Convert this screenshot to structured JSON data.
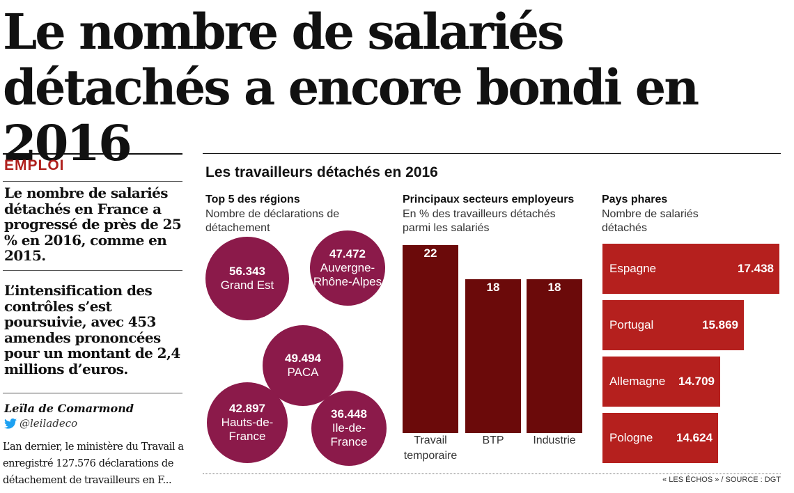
{
  "headline": "Le nombre de salariés détachés a encore bondi en  2016",
  "article": {
    "section": "EMPLOI",
    "lead1": "Le nombre de salariés détachés en France a progressé de près de 25 % en 2016, comme en 2015.",
    "lead2": "L’intensification des contrôles s’est poursuivie, avec 453 amendes prononcées pour un montant de 2,4 millions d’euros.",
    "author": "Leïla de Comarmond",
    "twitter": "@leiladeco",
    "body": "L’an dernier, le ministère du Travail a enregistré 127.576 déclarations de détachement de travailleurs en F..."
  },
  "infographic": {
    "title": "Les travailleurs détachés en 2016",
    "source": "« LES ÉCHOS » / SOURCE : DGT"
  },
  "colors": {
    "bubble": "#8b1a4a",
    "sector_bar": "#6b0a0a",
    "country_bar": "#b5201e",
    "section": "#b0211e"
  },
  "chart_data": [
    {
      "type": "bubble",
      "title": "Top 5 des régions",
      "subtitle": "Nombre de déclarations de détachement",
      "items": [
        {
          "label": "Grand Est",
          "value": 56343,
          "value_text": "56.343"
        },
        {
          "label": "Auvergne-Rhône-Alpes",
          "value": 47472,
          "value_text": "47.472"
        },
        {
          "label": "PACA",
          "value": 49494,
          "value_text": "49.494"
        },
        {
          "label": "Hauts-de-France",
          "value": 42897,
          "value_text": "42.897"
        },
        {
          "label": "Ile-de-France",
          "value": 36448,
          "value_text": "36.448"
        }
      ]
    },
    {
      "type": "bar",
      "title": "Principaux secteurs employeurs",
      "subtitle": "En % des travailleurs détachés parmi les salariés",
      "categories": [
        "Travail temporaire",
        "BTP",
        "Industrie"
      ],
      "values": [
        22,
        18,
        18
      ]
    },
    {
      "type": "bar",
      "orientation": "horizontal",
      "title": "Pays phares",
      "subtitle": "Nombre de salariés détachés",
      "categories": [
        "Espagne",
        "Portugal",
        "Allemagne",
        "Pologne"
      ],
      "values": [
        17438,
        15869,
        14709,
        14624
      ],
      "value_texts": [
        "17.438",
        "15.869",
        "14.709",
        "14.624"
      ]
    }
  ]
}
